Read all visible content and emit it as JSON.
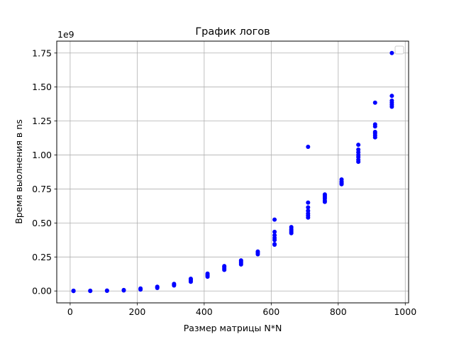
{
  "chart_data": {
    "type": "scatter",
    "title": "График логов",
    "xlabel": "Размер матрицы N*N",
    "ylabel": "Время выолнения в ns",
    "y_offset_text": "1e9",
    "xlim": [
      -40,
      1010
    ],
    "ylim": [
      -0.0875,
      1.8375
    ],
    "y_scale_multiplier": 1000000000,
    "x_ticks": [
      0,
      200,
      400,
      600,
      800,
      1000
    ],
    "x_tick_labels": [
      "0",
      "200",
      "400",
      "600",
      "800",
      "1000"
    ],
    "y_ticks": [
      0.0,
      0.25,
      0.5,
      0.75,
      1.0,
      1.25,
      1.5,
      1.75
    ],
    "y_tick_labels": [
      "0.00",
      "0.25",
      "0.50",
      "0.75",
      "1.00",
      "1.25",
      "1.50",
      "1.75"
    ],
    "grid": true,
    "legend": "top-right (empty)",
    "marker_color": "#0000ff",
    "series": [
      {
        "points": [
          [
            10,
            0.0
          ],
          [
            10,
            0.0
          ],
          [
            10,
            0.002
          ],
          [
            60,
            0.0
          ],
          [
            60,
            0.002
          ],
          [
            110,
            0.001
          ],
          [
            110,
            0.003
          ],
          [
            160,
            0.004
          ],
          [
            160,
            0.007
          ],
          [
            210,
            0.01
          ],
          [
            210,
            0.014
          ],
          [
            210,
            0.018
          ],
          [
            260,
            0.022
          ],
          [
            260,
            0.027
          ],
          [
            260,
            0.031
          ],
          [
            310,
            0.04
          ],
          [
            310,
            0.046
          ],
          [
            310,
            0.052
          ],
          [
            360,
            0.068
          ],
          [
            360,
            0.077
          ],
          [
            360,
            0.085
          ],
          [
            360,
            0.09
          ],
          [
            410,
            0.105
          ],
          [
            410,
            0.113
          ],
          [
            410,
            0.12
          ],
          [
            410,
            0.128
          ],
          [
            460,
            0.155
          ],
          [
            460,
            0.165
          ],
          [
            460,
            0.175
          ],
          [
            460,
            0.183
          ],
          [
            510,
            0.195
          ],
          [
            510,
            0.205
          ],
          [
            510,
            0.215
          ],
          [
            510,
            0.225
          ],
          [
            560,
            0.27
          ],
          [
            560,
            0.28
          ],
          [
            560,
            0.29
          ],
          [
            610,
            0.34
          ],
          [
            610,
            0.345
          ],
          [
            610,
            0.375
          ],
          [
            610,
            0.39
          ],
          [
            610,
            0.41
          ],
          [
            610,
            0.435
          ],
          [
            610,
            0.525
          ],
          [
            660,
            0.425
          ],
          [
            660,
            0.435
          ],
          [
            660,
            0.445
          ],
          [
            660,
            0.455
          ],
          [
            660,
            0.47
          ],
          [
            710,
            0.54
          ],
          [
            710,
            0.555
          ],
          [
            710,
            0.57
          ],
          [
            710,
            0.59
          ],
          [
            710,
            0.615
          ],
          [
            710,
            0.65
          ],
          [
            710,
            1.06
          ],
          [
            760,
            0.655
          ],
          [
            760,
            0.665
          ],
          [
            760,
            0.68
          ],
          [
            760,
            0.69
          ],
          [
            760,
            0.7
          ],
          [
            760,
            0.71
          ],
          [
            810,
            0.785
          ],
          [
            810,
            0.79
          ],
          [
            810,
            0.8
          ],
          [
            810,
            0.805
          ],
          [
            810,
            0.82
          ],
          [
            860,
            0.95
          ],
          [
            860,
            0.965
          ],
          [
            860,
            0.985
          ],
          [
            860,
            1.0
          ],
          [
            860,
            1.02
          ],
          [
            860,
            1.04
          ],
          [
            860,
            1.075
          ],
          [
            910,
            1.13
          ],
          [
            910,
            1.145
          ],
          [
            910,
            1.16
          ],
          [
            910,
            1.17
          ],
          [
            910,
            1.21
          ],
          [
            910,
            1.225
          ],
          [
            910,
            1.385
          ],
          [
            960,
            1.355
          ],
          [
            960,
            1.37
          ],
          [
            960,
            1.385
          ],
          [
            960,
            1.4
          ],
          [
            960,
            1.435
          ],
          [
            960,
            1.75
          ]
        ]
      }
    ]
  }
}
